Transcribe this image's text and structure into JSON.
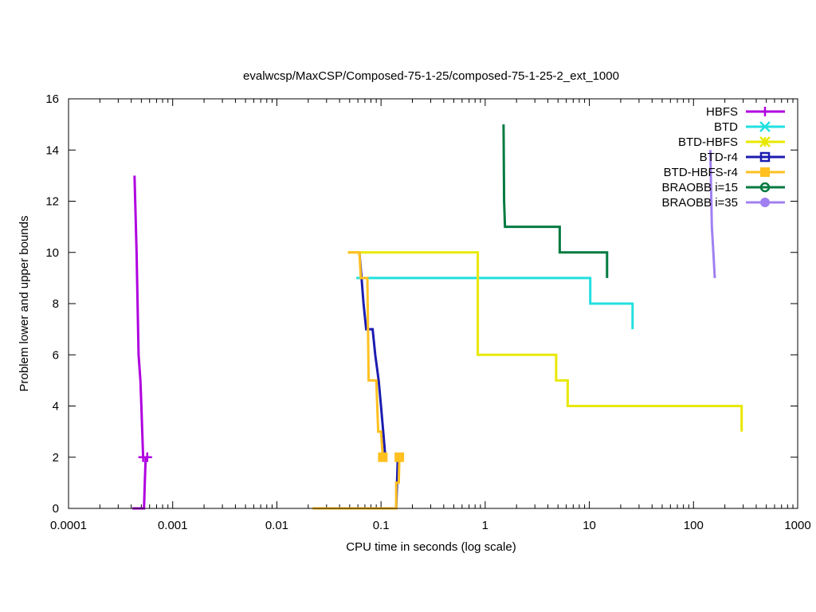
{
  "chart_data": {
    "type": "line",
    "title": "evalwcsp/MaxCSP/Composed-75-1-25/composed-75-1-25-2_ext_1000",
    "xlabel": "CPU time in seconds (log scale)",
    "ylabel": "Problem lower and upper bounds",
    "xscale": "log",
    "xlim": [
      0.0001,
      1000
    ],
    "ylim": [
      0,
      16
    ],
    "grid": false,
    "legend_position": "top-right",
    "x_ticks": [
      {
        "value": 0.0001,
        "label": "0.0001"
      },
      {
        "value": 0.001,
        "label": "0.001"
      },
      {
        "value": 0.01,
        "label": "0.01"
      },
      {
        "value": 0.1,
        "label": "0.1"
      },
      {
        "value": 1,
        "label": "1"
      },
      {
        "value": 10,
        "label": "10"
      },
      {
        "value": 100,
        "label": "100"
      },
      {
        "value": 1000,
        "label": "1000"
      }
    ],
    "y_ticks": [
      {
        "value": 0,
        "label": "0"
      },
      {
        "value": 2,
        "label": "2"
      },
      {
        "value": 4,
        "label": "4"
      },
      {
        "value": 6,
        "label": "6"
      },
      {
        "value": 8,
        "label": "8"
      },
      {
        "value": 10,
        "label": "10"
      },
      {
        "value": 12,
        "label": "12"
      },
      {
        "value": 14,
        "label": "14"
      },
      {
        "value": 16,
        "label": "16"
      }
    ],
    "series": [
      {
        "name": "HBFS",
        "color": "#b000e0",
        "marker": "plus",
        "upper": [
          [
            0.00043,
            13
          ],
          [
            0.00045,
            10
          ],
          [
            0.00047,
            6
          ],
          [
            0.00049,
            5
          ],
          [
            0.0005,
            4
          ],
          [
            0.00051,
            3
          ],
          [
            0.00052,
            2
          ]
        ],
        "lower": [
          [
            0.00041,
            0
          ],
          [
            0.00053,
            0
          ],
          [
            0.00054,
            1
          ],
          [
            0.00055,
            2
          ]
        ],
        "marker_points": [
          [
            0.00052,
            2
          ],
          [
            0.00057,
            2
          ]
        ]
      },
      {
        "name": "BTD",
        "color": "#22e0e0",
        "marker": "x",
        "upper": [
          [
            0.058,
            9
          ],
          [
            10.2,
            9
          ],
          [
            10.2,
            8
          ],
          [
            26,
            8
          ],
          [
            26,
            7
          ]
        ],
        "lower": [],
        "marker_points": []
      },
      {
        "name": "BTD-HBFS",
        "color": "#e8e800",
        "marker": "star",
        "upper": [
          [
            0.048,
            10
          ],
          [
            0.85,
            10
          ],
          [
            0.85,
            6
          ],
          [
            4.8,
            6
          ],
          [
            4.8,
            5
          ],
          [
            6.2,
            5
          ],
          [
            6.2,
            4
          ],
          [
            290,
            4
          ],
          [
            290,
            3
          ]
        ],
        "lower": [],
        "marker_points": []
      },
      {
        "name": "BTD-r4",
        "color": "#1c1cb0",
        "marker": "square",
        "upper": [
          [
            0.062,
            10
          ],
          [
            0.065,
            9
          ],
          [
            0.068,
            8
          ],
          [
            0.072,
            7
          ],
          [
            0.083,
            7
          ],
          [
            0.088,
            6
          ],
          [
            0.095,
            5
          ],
          [
            0.1,
            4
          ],
          [
            0.105,
            3
          ],
          [
            0.11,
            2
          ]
        ],
        "lower": [
          [
            0.14,
            0
          ],
          [
            0.145,
            2
          ]
        ],
        "marker_points": []
      },
      {
        "name": "BTD-HBFS-r4",
        "color": "#ffc020",
        "marker": "filled-square",
        "upper": [
          [
            0.048,
            10
          ],
          [
            0.062,
            10
          ],
          [
            0.064,
            9
          ],
          [
            0.074,
            9
          ],
          [
            0.076,
            5
          ],
          [
            0.09,
            5
          ],
          [
            0.094,
            3
          ],
          [
            0.1,
            3
          ],
          [
            0.104,
            2
          ]
        ],
        "lower": [
          [
            0.022,
            0
          ],
          [
            0.14,
            0
          ],
          [
            0.14,
            1
          ],
          [
            0.148,
            1
          ],
          [
            0.15,
            2
          ]
        ],
        "marker_points": [
          [
            0.104,
            2
          ],
          [
            0.15,
            2
          ]
        ]
      },
      {
        "name": "BRAOBB i=15",
        "color": "#007a40",
        "marker": "circle",
        "upper": [
          [
            1.5,
            15
          ],
          [
            1.52,
            12
          ],
          [
            1.55,
            11
          ],
          [
            5.2,
            11
          ],
          [
            5.2,
            10
          ],
          [
            14.8,
            10
          ],
          [
            14.8,
            9
          ]
        ],
        "lower": [],
        "marker_points": []
      },
      {
        "name": "BRAOBB i=35",
        "color": "#a080f0",
        "marker": "filled-circle",
        "upper": [
          [
            145,
            14
          ],
          [
            150,
            11
          ],
          [
            155,
            10
          ],
          [
            160,
            9
          ]
        ],
        "lower": [],
        "marker_points": []
      }
    ]
  }
}
